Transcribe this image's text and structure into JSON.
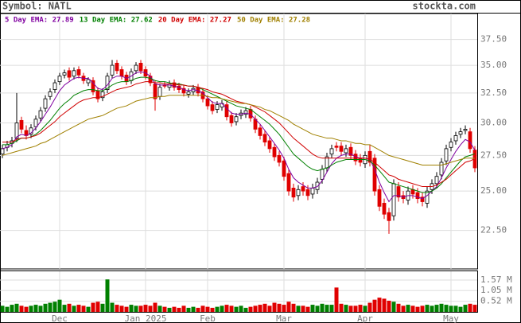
{
  "header": {
    "symbol": "Symbol: NATL",
    "site": "stockta.com"
  },
  "chart_data": [
    {
      "type": "candlestick",
      "categories": [
        null,
        null,
        null,
        null,
        null,
        null,
        null,
        null,
        null,
        null,
        null,
        null,
        "Dec",
        null,
        null,
        null,
        null,
        null,
        null,
        null,
        null,
        null,
        null,
        null,
        null,
        null,
        null,
        null,
        null,
        null,
        "Jan 2025",
        null,
        null,
        null,
        null,
        null,
        null,
        null,
        null,
        null,
        null,
        null,
        null,
        "Feb",
        null,
        null,
        null,
        null,
        null,
        null,
        null,
        null,
        null,
        null,
        null,
        null,
        null,
        null,
        null,
        "Mar",
        null,
        null,
        null,
        null,
        null,
        null,
        null,
        null,
        null,
        null,
        null,
        null,
        null,
        null,
        null,
        null,
        "Apr",
        null,
        null,
        null,
        null,
        null,
        null,
        null,
        null,
        null,
        null,
        null,
        null,
        null,
        null,
        null,
        null,
        null,
        "May",
        null,
        null,
        null,
        null,
        null
      ],
      "open": [
        27.6,
        28.1,
        28.4,
        28.8,
        30.2,
        29.4,
        29.1,
        29.7,
        30.4,
        31.2,
        32.2,
        32.8,
        33.5,
        34.1,
        34.5,
        34.0,
        34.6,
        34.0,
        33.4,
        33.6,
        32.7,
        32.1,
        32.8,
        34.1,
        35.2,
        34.6,
        34.1,
        33.6,
        34.5,
        35.2,
        34.6,
        34.0,
        33.3,
        32.2,
        33.2,
        33.0,
        33.4,
        33.1,
        32.9,
        32.4,
        32.6,
        33.0,
        32.6,
        32.0,
        31.5,
        31.1,
        31.3,
        31.5,
        30.6,
        30.1,
        30.6,
        30.7,
        31.1,
        30.3,
        29.6,
        29.1,
        28.6,
        28.1,
        27.5,
        27.1,
        26.2,
        25.2,
        24.7,
        25.3,
        25.1,
        24.8,
        25.1,
        25.8,
        26.6,
        27.6,
        28.2,
        28.2,
        27.7,
        28.1,
        27.6,
        27.3,
        26.9,
        27.8,
        27.3,
        25.1,
        24.2,
        23.6,
        23.4,
        25.3,
        24.7,
        24.4,
        25.1,
        24.9,
        24.6,
        24.2,
        25.1,
        25.5,
        26.1,
        27.1,
        28.1,
        28.6,
        29.1,
        29.4,
        29.3,
        27.9
      ],
      "high": [
        28.3,
        28.6,
        28.9,
        32.5,
        30.5,
        29.8,
        29.9,
        30.6,
        31.3,
        32.3,
        32.9,
        33.7,
        34.3,
        34.6,
        34.8,
        34.8,
        34.9,
        34.3,
        33.9,
        33.9,
        33.0,
        32.9,
        34.3,
        35.5,
        35.5,
        34.9,
        34.4,
        34.7,
        35.3,
        35.5,
        34.9,
        34.3,
        33.6,
        33.3,
        33.5,
        33.6,
        33.7,
        33.4,
        33.2,
        32.9,
        33.2,
        33.3,
        32.9,
        32.3,
        31.8,
        31.8,
        31.9,
        31.8,
        30.9,
        30.8,
        31.1,
        31.3,
        31.4,
        30.6,
        29.9,
        29.4,
        28.9,
        28.4,
        27.8,
        27.4,
        26.5,
        25.5,
        25.4,
        25.6,
        25.4,
        25.5,
        25.9,
        26.8,
        27.7,
        28.3,
        28.5,
        28.5,
        28.3,
        28.4,
        27.9,
        27.6,
        27.8,
        28.3,
        27.6,
        25.4,
        24.5,
        23.9,
        25.8,
        25.6,
        25.0,
        25.3,
        25.4,
        25.2,
        24.9,
        25.3,
        25.8,
        26.3,
        27.3,
        28.3,
        28.8,
        29.3,
        29.6,
        29.8,
        29.6,
        28.2
      ],
      "low": [
        27.3,
        27.8,
        28.1,
        28.5,
        29.2,
        28.7,
        28.8,
        29.4,
        30.1,
        30.9,
        31.9,
        32.5,
        33.2,
        33.8,
        33.6,
        33.7,
        33.8,
        33.3,
        33.1,
        32.3,
        31.7,
        31.8,
        32.5,
        33.8,
        34.2,
        33.7,
        33.2,
        33.3,
        34.2,
        34.2,
        33.7,
        33.1,
        31.0,
        31.9,
        32.9,
        32.7,
        32.7,
        32.5,
        32.2,
        32.1,
        32.3,
        32.2,
        31.7,
        31.1,
        30.7,
        30.8,
        31.0,
        30.2,
        29.7,
        29.8,
        30.3,
        30.4,
        30.1,
        29.2,
        28.7,
        28.2,
        27.7,
        27.1,
        26.7,
        25.7,
        24.7,
        24.3,
        24.4,
        24.7,
        24.4,
        24.5,
        24.8,
        25.5,
        26.3,
        27.3,
        27.8,
        27.5,
        27.4,
        27.2,
        26.8,
        26.7,
        26.6,
        26.7,
        24.7,
        23.7,
        23.2,
        22.3,
        23.1,
        24.3,
        24.2,
        24.1,
        24.5,
        24.2,
        24.0,
        23.9,
        24.8,
        25.2,
        25.8,
        26.8,
        27.8,
        28.3,
        28.8,
        29.1,
        27.7,
        26.3
      ],
      "close": [
        28.0,
        28.3,
        28.6,
        30.0,
        29.5,
        29.0,
        29.6,
        30.3,
        31.0,
        32.0,
        32.6,
        33.4,
        34.0,
        34.3,
        33.9,
        34.5,
        34.1,
        33.6,
        33.7,
        32.6,
        32.0,
        32.6,
        34.0,
        35.0,
        34.5,
        34.0,
        33.5,
        34.4,
        35.0,
        34.5,
        34.0,
        33.4,
        32.0,
        33.0,
        33.1,
        33.3,
        33.0,
        32.8,
        32.5,
        32.6,
        32.9,
        32.5,
        32.0,
        31.4,
        31.0,
        31.5,
        31.6,
        30.5,
        30.0,
        30.5,
        30.8,
        31.0,
        30.4,
        29.5,
        29.0,
        28.5,
        28.0,
        27.4,
        27.0,
        26.0,
        25.0,
        24.6,
        25.1,
        25.0,
        24.7,
        25.2,
        25.6,
        26.5,
        27.4,
        28.0,
        28.1,
        27.8,
        28.0,
        27.5,
        27.1,
        27.0,
        27.5,
        27.0,
        25.0,
        24.0,
        23.5,
        23.1,
        25.5,
        24.6,
        24.5,
        25.0,
        24.8,
        24.5,
        24.3,
        25.0,
        25.5,
        26.0,
        27.0,
        28.0,
        28.5,
        29.0,
        29.3,
        29.5,
        28.0,
        26.6
      ],
      "series": [
        {
          "name": "5 Day EMA: 27.89",
          "color": "#8000a0",
          "values": [
            28.0,
            28.1,
            28.3,
            28.9,
            29.1,
            29.0,
            29.2,
            29.6,
            30.1,
            30.7,
            31.3,
            32.0,
            32.7,
            33.2,
            33.5,
            33.8,
            33.9,
            33.8,
            33.8,
            33.4,
            32.9,
            32.8,
            33.2,
            33.8,
            34.0,
            34.0,
            33.8,
            34.0,
            34.3,
            34.4,
            34.3,
            34.0,
            33.3,
            33.2,
            33.2,
            33.2,
            33.1,
            33.0,
            32.8,
            32.7,
            32.8,
            32.7,
            32.5,
            32.1,
            31.7,
            31.6,
            31.6,
            31.2,
            30.8,
            30.7,
            30.7,
            30.8,
            30.7,
            30.3,
            29.9,
            29.4,
            28.9,
            28.4,
            27.9,
            27.3,
            26.5,
            25.9,
            25.6,
            25.4,
            25.2,
            25.2,
            25.3,
            25.7,
            26.3,
            26.9,
            27.3,
            27.5,
            27.6,
            27.6,
            27.4,
            27.3,
            27.3,
            27.2,
            26.5,
            25.6,
            24.9,
            24.3,
            24.7,
            24.7,
            24.6,
            24.7,
            24.7,
            24.6,
            24.5,
            24.7,
            25.0,
            25.3,
            25.9,
            26.6,
            27.2,
            27.8,
            28.3,
            28.7,
            28.5,
            27.89
          ]
        },
        {
          "name": "13 Day EMA: 27.62",
          "color": "#008000",
          "values": [
            28.3,
            28.3,
            28.4,
            28.6,
            28.8,
            28.8,
            28.9,
            29.1,
            29.4,
            29.8,
            30.2,
            30.7,
            31.2,
            31.6,
            31.9,
            32.3,
            32.5,
            32.7,
            32.8,
            32.8,
            32.7,
            32.7,
            32.9,
            33.2,
            33.4,
            33.5,
            33.5,
            33.6,
            33.8,
            33.9,
            33.9,
            33.8,
            33.6,
            33.5,
            33.5,
            33.4,
            33.3,
            33.3,
            33.2,
            33.1,
            33.1,
            33.0,
            32.8,
            32.6,
            32.4,
            32.2,
            32.0,
            31.8,
            31.6,
            31.4,
            31.3,
            31.2,
            31.1,
            30.8,
            30.5,
            30.2,
            29.9,
            29.5,
            29.1,
            28.6,
            28.1,
            27.6,
            27.3,
            27.0,
            26.7,
            26.5,
            26.4,
            26.5,
            26.6,
            26.8,
            27.0,
            27.1,
            27.2,
            27.2,
            27.2,
            27.2,
            27.2,
            27.1,
            26.8,
            26.4,
            26.0,
            25.6,
            25.5,
            25.4,
            25.3,
            25.2,
            25.1,
            25.0,
            24.9,
            24.9,
            25.0,
            25.2,
            25.5,
            25.9,
            26.3,
            26.7,
            27.1,
            27.4,
            27.5,
            27.62
          ]
        },
        {
          "name": "20 Day EMA: 27.27",
          "color": "#d00000",
          "values": [
            28.5,
            28.5,
            28.5,
            28.7,
            28.8,
            28.8,
            28.9,
            29.0,
            29.2,
            29.5,
            29.8,
            30.1,
            30.5,
            30.8,
            31.1,
            31.4,
            31.7,
            31.9,
            32.0,
            32.1,
            32.1,
            32.2,
            32.4,
            32.6,
            32.8,
            32.9,
            33.0,
            33.1,
            33.3,
            33.4,
            33.5,
            33.5,
            33.4,
            33.4,
            33.3,
            33.3,
            33.3,
            33.2,
            33.2,
            33.1,
            33.1,
            33.0,
            32.9,
            32.8,
            32.6,
            32.5,
            32.4,
            32.2,
            32.0,
            31.8,
            31.7,
            31.6,
            31.5,
            31.3,
            31.1,
            30.9,
            30.6,
            30.3,
            30.0,
            29.6,
            29.2,
            28.8,
            28.5,
            28.2,
            27.9,
            27.6,
            27.4,
            27.3,
            27.3,
            27.3,
            27.3,
            27.3,
            27.3,
            27.3,
            27.3,
            27.3,
            27.3,
            27.2,
            27.0,
            26.7,
            26.4,
            26.1,
            26.0,
            25.8,
            25.7,
            25.6,
            25.5,
            25.4,
            25.3,
            25.3,
            25.3,
            25.4,
            25.6,
            25.8,
            26.1,
            26.4,
            26.7,
            27.0,
            27.1,
            27.27
          ]
        },
        {
          "name": "50 Day EMA: 27.28",
          "color": "#a08000",
          "values": [
            27.5,
            27.6,
            27.7,
            27.8,
            27.9,
            28.0,
            28.1,
            28.2,
            28.4,
            28.5,
            28.7,
            28.9,
            29.1,
            29.3,
            29.5,
            29.7,
            29.9,
            30.1,
            30.3,
            30.4,
            30.5,
            30.6,
            30.8,
            31.0,
            31.2,
            31.3,
            31.4,
            31.6,
            31.8,
            31.9,
            32.0,
            32.1,
            32.1,
            32.2,
            32.2,
            32.3,
            32.3,
            32.3,
            32.3,
            32.3,
            32.3,
            32.3,
            32.3,
            32.2,
            32.1,
            32.1,
            32.0,
            31.9,
            31.8,
            31.7,
            31.6,
            31.6,
            31.5,
            31.4,
            31.3,
            31.1,
            31.0,
            30.8,
            30.6,
            30.4,
            30.2,
            29.9,
            29.7,
            29.5,
            29.3,
            29.1,
            29.0,
            28.9,
            28.8,
            28.8,
            28.7,
            28.6,
            28.6,
            28.5,
            28.4,
            28.4,
            28.3,
            28.3,
            28.1,
            27.9,
            27.7,
            27.5,
            27.4,
            27.3,
            27.2,
            27.1,
            27.0,
            26.9,
            26.8,
            26.8,
            26.8,
            26.8,
            26.8,
            26.9,
            27.0,
            27.1,
            27.2,
            27.3,
            27.3,
            27.28
          ]
        }
      ],
      "ylim": [
        20.3,
        40.2
      ],
      "log_scale": true,
      "grid": true,
      "up_color": "#ffffff",
      "down_color": "#e00000",
      "yticks": [
        {
          "value": 22.5,
          "label": "22.50"
        },
        {
          "value": 25,
          "label": "25.00"
        },
        {
          "value": 27.5,
          "label": "27.50"
        },
        {
          "value": 30,
          "label": "30.00"
        },
        {
          "value": 32.5,
          "label": "32.50"
        },
        {
          "value": 35,
          "label": "35.00"
        },
        {
          "value": 37.5,
          "label": "37.50"
        }
      ]
    },
    {
      "type": "bar",
      "up_color": "#008000",
      "down_color": "#e00000",
      "ylim": [
        0,
        2.0
      ],
      "grid": true,
      "yticks": [
        {
          "value": 0.52,
          "label": "0.52 M"
        },
        {
          "value": 1.05,
          "label": "1.05 M"
        },
        {
          "value": 1.57,
          "label": "1.57 M"
        }
      ],
      "values": [
        0.3,
        0.25,
        0.35,
        0.4,
        0.3,
        0.25,
        0.3,
        0.35,
        0.3,
        0.4,
        0.45,
        0.5,
        0.6,
        0.35,
        0.4,
        0.3,
        0.35,
        0.3,
        0.25,
        0.45,
        0.5,
        0.4,
        1.6,
        0.45,
        0.35,
        0.3,
        0.25,
        0.35,
        0.3,
        0.3,
        0.35,
        0.3,
        0.45,
        0.3,
        0.25,
        0.2,
        0.25,
        0.2,
        0.3,
        0.2,
        0.25,
        0.2,
        0.3,
        0.25,
        0.2,
        0.25,
        0.3,
        0.35,
        0.3,
        0.25,
        0.3,
        0.2,
        0.25,
        0.3,
        0.35,
        0.4,
        0.3,
        0.45,
        0.4,
        0.35,
        0.5,
        0.4,
        0.3,
        0.3,
        0.25,
        0.35,
        0.3,
        0.4,
        0.35,
        0.35,
        1.2,
        0.4,
        0.35,
        0.3,
        0.3,
        0.35,
        0.3,
        0.45,
        0.6,
        0.7,
        0.65,
        0.55,
        0.5,
        0.4,
        0.3,
        0.35,
        0.3,
        0.25,
        0.3,
        0.35,
        0.3,
        0.35,
        0.4,
        0.35,
        0.3,
        0.3,
        0.25,
        0.35,
        0.4,
        0.35
      ]
    }
  ]
}
